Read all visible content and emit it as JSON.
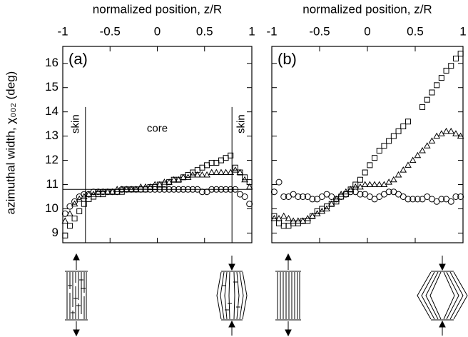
{
  "chart_data": [
    {
      "type": "scatter",
      "panel_label": "(a)",
      "xlabel": "normalized position, z/R",
      "ylabel": "azimuthal width, χ₀₀₂ (deg)",
      "x": [
        -0.975,
        -0.925,
        -0.875,
        -0.825,
        -0.775,
        -0.725,
        -0.675,
        -0.625,
        -0.575,
        -0.525,
        -0.475,
        -0.425,
        -0.375,
        -0.325,
        -0.275,
        -0.225,
        -0.175,
        -0.125,
        -0.075,
        -0.025,
        0.025,
        0.075,
        0.125,
        0.175,
        0.225,
        0.275,
        0.325,
        0.375,
        0.425,
        0.475,
        0.525,
        0.575,
        0.625,
        0.675,
        0.725,
        0.775,
        0.825,
        0.875,
        0.925,
        0.975
      ],
      "series": [
        {
          "marker": "square",
          "color": "#000000",
          "values": [
            8.9,
            9.3,
            9.6,
            9.9,
            10.2,
            10.4,
            10.5,
            10.6,
            10.6,
            10.7,
            10.7,
            10.7,
            10.7,
            10.8,
            10.8,
            10.8,
            10.8,
            10.8,
            10.9,
            10.9,
            11.0,
            11.0,
            11.1,
            11.2,
            11.2,
            11.3,
            11.4,
            11.5,
            11.6,
            11.7,
            11.8,
            11.9,
            11.9,
            12.0,
            12.1,
            12.2,
            11.7,
            11.5,
            11.3,
            11.1
          ]
        },
        {
          "marker": "triangle",
          "color": "#000000",
          "values": [
            9.5,
            9.8,
            10.2,
            10.4,
            10.5,
            10.6,
            10.6,
            10.7,
            10.7,
            10.7,
            10.7,
            10.8,
            10.8,
            10.8,
            10.8,
            10.8,
            10.9,
            10.9,
            10.9,
            11.0,
            11.0,
            11.1,
            11.1,
            11.2,
            11.2,
            11.3,
            11.3,
            11.4,
            11.4,
            11.4,
            11.4,
            11.5,
            11.5,
            11.5,
            11.5,
            11.5,
            11.6,
            11.5,
            11.2,
            10.9
          ]
        },
        {
          "marker": "circle",
          "color": "#000000",
          "values": [
            9.8,
            10.1,
            10.3,
            10.5,
            10.6,
            10.6,
            10.7,
            10.7,
            10.7,
            10.7,
            10.7,
            10.7,
            10.8,
            10.8,
            10.8,
            10.8,
            10.8,
            10.8,
            10.8,
            10.8,
            10.8,
            10.8,
            10.8,
            10.8,
            10.8,
            10.8,
            10.8,
            10.8,
            10.8,
            10.7,
            10.7,
            10.8,
            10.8,
            10.8,
            10.8,
            10.8,
            10.8,
            10.6,
            10.5,
            10.2
          ]
        }
      ],
      "annotations": [
        "skin",
        "core",
        "skin"
      ],
      "vlines": [
        -0.76,
        0.79
      ],
      "hline": 10.8,
      "xlim": [
        -1,
        1
      ],
      "xticks": [
        -1,
        -0.5,
        0,
        0.5,
        1
      ],
      "ylim": [
        8.6,
        16.7
      ],
      "yticks": [
        9,
        10,
        11,
        12,
        13,
        14,
        15,
        16
      ],
      "show_ytick_labels": true
    },
    {
      "type": "scatter",
      "panel_label": "(b)",
      "xlabel": "normalized position, z/R",
      "x": [
        -0.975,
        -0.925,
        -0.875,
        -0.825,
        -0.775,
        -0.725,
        -0.675,
        -0.625,
        -0.575,
        -0.525,
        -0.475,
        -0.425,
        -0.375,
        -0.325,
        -0.275,
        -0.225,
        -0.175,
        -0.125,
        -0.075,
        -0.025,
        0.025,
        0.075,
        0.125,
        0.175,
        0.225,
        0.275,
        0.325,
        0.375,
        0.425,
        0.475,
        0.525,
        0.575,
        0.625,
        0.675,
        0.725,
        0.775,
        0.825,
        0.875,
        0.925,
        0.975
      ],
      "series": [
        {
          "marker": "square",
          "color": "#000000",
          "values": [
            9.7,
            9.4,
            9.3,
            9.3,
            9.4,
            9.4,
            9.5,
            9.5,
            9.7,
            9.9,
            10.0,
            10.1,
            10.2,
            10.3,
            10.5,
            10.6,
            10.8,
            11.0,
            11.2,
            11.5,
            11.8,
            12.1,
            12.4,
            12.6,
            12.8,
            13.0,
            13.2,
            13.4,
            13.6,
            null,
            null,
            14.2,
            14.5,
            14.8,
            15.1,
            15.4,
            15.7,
            15.9,
            16.2,
            16.4
          ]
        },
        {
          "marker": "triangle",
          "color": "#000000",
          "values": [
            9.6,
            9.6,
            9.7,
            9.6,
            9.5,
            9.5,
            9.5,
            9.6,
            9.7,
            9.8,
            9.9,
            10.0,
            10.2,
            10.4,
            10.6,
            10.7,
            10.8,
            10.9,
            10.9,
            11.0,
            11.0,
            11.0,
            11.0,
            11.0,
            11.1,
            11.2,
            11.4,
            11.6,
            11.8,
            12.0,
            12.2,
            12.4,
            12.6,
            12.8,
            13.0,
            13.1,
            13.2,
            13.2,
            13.1,
            13.0
          ]
        },
        {
          "marker": "circle",
          "color": "#000000",
          "values": [
            10.7,
            11.1,
            10.5,
            10.5,
            10.6,
            10.5,
            10.5,
            10.5,
            10.4,
            10.4,
            10.5,
            10.6,
            10.5,
            10.4,
            10.5,
            10.6,
            10.7,
            10.7,
            10.6,
            10.6,
            10.5,
            10.4,
            10.5,
            10.6,
            10.7,
            10.7,
            10.6,
            10.5,
            10.4,
            10.4,
            10.4,
            10.4,
            10.5,
            10.4,
            10.3,
            10.4,
            10.4,
            10.3,
            10.5,
            10.5
          ]
        }
      ],
      "xlim": [
        -1,
        1
      ],
      "xticks": [
        -1,
        -0.5,
        0,
        0.5,
        1
      ],
      "ylim": [
        8.6,
        16.7
      ],
      "yticks": [
        9,
        10,
        11,
        12,
        13,
        14,
        15,
        16
      ],
      "show_ytick_labels": false
    }
  ]
}
